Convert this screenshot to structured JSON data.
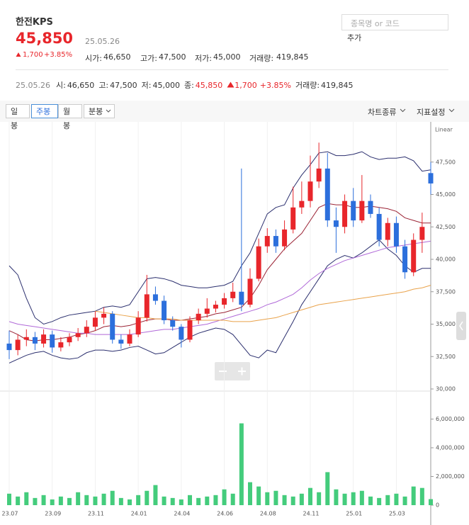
{
  "header": {
    "name": "한전KPS",
    "price": "45,850",
    "date": "25.05.26",
    "change": "1,700",
    "change_pct": "+3.85%",
    "stats": [
      {
        "label": "시가:",
        "value": "46,650"
      },
      {
        "label": "고가:",
        "value": "47,500"
      },
      {
        "label": "저가:",
        "value": "45,000"
      },
      {
        "label": "거래량:",
        "value": "419,845"
      }
    ]
  },
  "search": {
    "placeholder": "종목명 or 코드",
    "button": "추가"
  },
  "info_bar": {
    "date": "25.05.26",
    "items": [
      {
        "label": "시:",
        "value": "46,650"
      },
      {
        "label": "고:",
        "value": "47,500"
      },
      {
        "label": "저:",
        "value": "45,000"
      },
      {
        "label": "종:",
        "value": "45,850"
      }
    ],
    "change": "1,700",
    "change_pct": "+3.85%",
    "volume_label": "거래량:",
    "volume": "419,845"
  },
  "tabs": [
    "일봉",
    "주봉",
    "월봉",
    "분봉"
  ],
  "menus": [
    "차트종류",
    "지표설정"
  ],
  "chart_data": {
    "type": "candlestick",
    "scale_label": "Linear",
    "up_color": "#e8262b",
    "down_color": "#2c6fdc",
    "categories": [
      "23.07",
      null,
      null,
      null,
      null,
      "23.09",
      null,
      null,
      null,
      null,
      "23.11",
      null,
      null,
      null,
      null,
      "24.01",
      null,
      null,
      null,
      null,
      "24.04",
      null,
      null,
      null,
      null,
      "24.06",
      null,
      null,
      null,
      null,
      "24.08",
      null,
      null,
      null,
      null,
      "24.11",
      null,
      null,
      null,
      null,
      "25.01",
      null,
      null,
      null,
      null,
      "25.03",
      null,
      null,
      null,
      null
    ],
    "candles": {
      "open": [
        33500,
        33000,
        33800,
        34000,
        33500,
        34200,
        33200,
        33600,
        34000,
        34300,
        34800,
        35500,
        35800,
        33800,
        33500,
        34200,
        35500,
        37300,
        36800,
        35300,
        34800,
        33800,
        35300,
        35800,
        36200,
        36500,
        37000,
        37500,
        36500,
        38500,
        41000,
        41800,
        41000,
        42300,
        44000,
        44500,
        46000,
        47000,
        43000,
        42500,
        44500,
        43000,
        44500,
        43500,
        41500,
        42800,
        41000,
        39000,
        41500,
        46650
      ],
      "high": [
        34500,
        34200,
        34600,
        34400,
        34600,
        34500,
        34000,
        34300,
        34700,
        35300,
        36000,
        36300,
        36000,
        34200,
        34600,
        36000,
        38800,
        37900,
        37200,
        35600,
        35000,
        35600,
        36200,
        37000,
        36800,
        37400,
        38200,
        47000,
        39300,
        41600,
        42400,
        42300,
        43000,
        45600,
        46000,
        48000,
        49000,
        48200,
        44000,
        45000,
        45500,
        46500,
        45000,
        44000,
        43200,
        43300,
        41500,
        42000,
        43600,
        47500
      ],
      "low": [
        32300,
        32600,
        33300,
        33000,
        33200,
        32800,
        32900,
        33300,
        33700,
        34000,
        34500,
        35000,
        33500,
        33100,
        33300,
        34000,
        35200,
        36500,
        35000,
        34500,
        33200,
        33600,
        35000,
        35500,
        35900,
        36200,
        36700,
        36000,
        36300,
        38300,
        40500,
        40500,
        40700,
        42000,
        43500,
        44000,
        45500,
        42500,
        40500,
        42000,
        42500,
        42800,
        43200,
        41000,
        41000,
        40500,
        38500,
        38700,
        40500,
        45000
      ],
      "close": [
        33000,
        33800,
        34000,
        33500,
        34200,
        33200,
        33600,
        34000,
        34300,
        34800,
        35500,
        35800,
        33800,
        33500,
        34200,
        35500,
        37300,
        36800,
        35300,
        34800,
        33800,
        35300,
        35800,
        36200,
        36500,
        37000,
        37500,
        36500,
        38500,
        41000,
        41800,
        41000,
        42300,
        44000,
        44500,
        46000,
        47000,
        43000,
        42500,
        44500,
        43000,
        44500,
        43500,
        41500,
        42800,
        41000,
        39000,
        41500,
        42500,
        45850
      ]
    },
    "lines": [
      {
        "color": "#2b2f6e",
        "values": [
          39500,
          38800,
          37000,
          35500,
          35000,
          35200,
          35500,
          35700,
          35800,
          35900,
          36000,
          36300,
          36400,
          36300,
          36500,
          37500,
          38500,
          38600,
          38500,
          38300,
          38000,
          37900,
          37800,
          37800,
          37900,
          38000,
          38300,
          39500,
          40500,
          42000,
          43500,
          44000,
          44200,
          45500,
          46500,
          47300,
          48200,
          48300,
          48000,
          48000,
          48100,
          48300,
          47900,
          47700,
          47800,
          47800,
          47900,
          47600,
          46800,
          46900
        ]
      },
      {
        "color": "#2b2f6e",
        "values": [
          32000,
          32300,
          32600,
          32800,
          32900,
          32600,
          32400,
          32300,
          32400,
          32800,
          33000,
          33000,
          32900,
          33000,
          33200,
          33300,
          33000,
          32700,
          32800,
          33200,
          33600,
          34000,
          34300,
          34500,
          34700,
          34600,
          34200,
          33400,
          32600,
          32400,
          33000,
          32800,
          34000,
          35200,
          36500,
          37500,
          38500,
          39500,
          40000,
          40300,
          40100,
          40500,
          41000,
          41500,
          40800,
          40300,
          39500,
          39000,
          39300,
          39300
        ]
      },
      {
        "color": "#9b2335",
        "values": [
          34500,
          34200,
          33800,
          33700,
          33800,
          33800,
          33900,
          34000,
          34200,
          34300,
          34500,
          34800,
          34900,
          34800,
          34900,
          35100,
          35300,
          35400,
          35400,
          35300,
          35300,
          35400,
          35500,
          35600,
          35800,
          35900,
          36100,
          36300,
          37000,
          38000,
          39200,
          40000,
          40800,
          41400,
          42000,
          43000,
          44000,
          44300,
          44200,
          44200,
          44000,
          44000,
          44100,
          44000,
          43900,
          43700,
          43200,
          43000,
          42800,
          42800
        ]
      },
      {
        "color": "#b069d8",
        "values": [
          35200,
          35000,
          34900,
          34800,
          34700,
          34600,
          34500,
          34400,
          34300,
          34300,
          34200,
          34200,
          34200,
          34200,
          34200,
          34300,
          34400,
          34500,
          34600,
          34600,
          34700,
          34800,
          34900,
          35000,
          35200,
          35400,
          35600,
          35800,
          36000,
          36200,
          36500,
          36700,
          37000,
          37300,
          37800,
          38400,
          38900,
          39300,
          39600,
          39900,
          40100,
          40300,
          40500,
          40700,
          40900,
          41000,
          41100,
          41200,
          41300,
          41400
        ]
      },
      {
        "color": "#e9a24a",
        "values": [
          null,
          null,
          null,
          null,
          null,
          null,
          null,
          null,
          null,
          null,
          36000,
          35900,
          35800,
          35700,
          35600,
          35500,
          35500,
          35400,
          35400,
          35400,
          35300,
          35300,
          35300,
          35300,
          35300,
          35300,
          35200,
          35200,
          35200,
          35300,
          35400,
          35500,
          35700,
          35900,
          36100,
          36300,
          36500,
          36600,
          36700,
          36800,
          36900,
          37000,
          37100,
          37200,
          37300,
          37400,
          37500,
          37700,
          37800,
          38000
        ]
      }
    ],
    "ylim": [
      30000,
      50000
    ],
    "yticks": [
      {
        "value": 30000,
        "label": "30,000"
      },
      {
        "value": 32500,
        "label": "32,500"
      },
      {
        "value": 35000,
        "label": "35,000"
      },
      {
        "value": 37500,
        "label": "37,500"
      },
      {
        "value": 40000,
        "label": "40,000"
      },
      {
        "value": 42500,
        "label": "42,500"
      },
      {
        "value": 45000,
        "label": "45,000"
      },
      {
        "value": 47500,
        "label": "47,500"
      }
    ],
    "volume": {
      "color": "#44cc7c",
      "values": [
        800000,
        600000,
        900000,
        500000,
        700000,
        400000,
        600000,
        500000,
        900000,
        700000,
        600000,
        800000,
        1000000,
        500000,
        400000,
        700000,
        1000000,
        1400000,
        600000,
        500000,
        400000,
        700000,
        500000,
        600000,
        700000,
        1100000,
        800000,
        5700000,
        1600000,
        1300000,
        900000,
        1000000,
        700000,
        600000,
        800000,
        1200000,
        900000,
        2300000,
        1100000,
        800000,
        900000,
        1000000,
        600000,
        500000,
        700000,
        800000,
        600000,
        1300000,
        1200000,
        419845
      ],
      "ylim": [
        0,
        7800000
      ],
      "yticks": [
        0,
        {
          "value": 2000000,
          "label": "2,000,000"
        },
        {
          "value": 4000000,
          "label": "4,000,000"
        },
        {
          "value": 6000000,
          "label": "6,000,000"
        }
      ]
    }
  }
}
